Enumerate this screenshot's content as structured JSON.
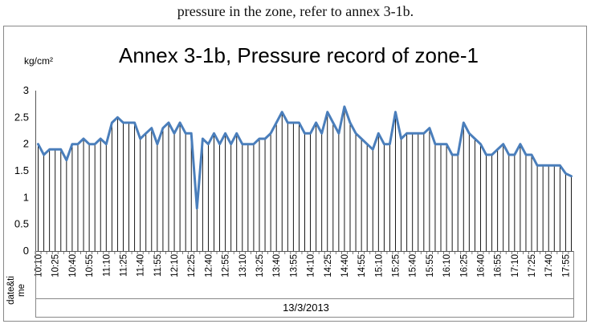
{
  "intro_text": "pressure in the zone, refer to annex 3-1b.",
  "chart_data": {
    "type": "line",
    "title": "Annex 3-1b, Pressure record of zone-1",
    "ylabel": "kg/cm²",
    "xlabel": "13/3/2013",
    "corner_label_line1": "date&ti",
    "corner_label_line2": "me",
    "ylim": [
      0,
      3
    ],
    "yticks": [
      "0",
      "0.5",
      "1",
      "1.5",
      "2",
      "2.5",
      "3"
    ],
    "grid": "vertical drop lines",
    "x": [
      "10:10",
      "10:15",
      "10:20",
      "10:25",
      "10:30",
      "10:35",
      "10:40",
      "10:45",
      "10:50",
      "10:55",
      "11:00",
      "11:05",
      "11:10",
      "11:15",
      "11:20",
      "11:25",
      "11:30",
      "11:35",
      "11:40",
      "11:45",
      "11:50",
      "11:55",
      "12:00",
      "12:05",
      "12:10",
      "12:15",
      "12:20",
      "12:25",
      "12:30",
      "12:35",
      "12:40",
      "12:45",
      "12:50",
      "12:55",
      "13:00",
      "13:05",
      "13:10",
      "13:15",
      "13:20",
      "13:25",
      "13:30",
      "13:35",
      "13:40",
      "13:45",
      "13:50",
      "13:55",
      "14:00",
      "14:05",
      "14:10",
      "14:15",
      "14:20",
      "14:25",
      "14:30",
      "14:35",
      "14:40",
      "14:45",
      "14:50",
      "14:55",
      "15:00",
      "15:05",
      "15:10",
      "15:15",
      "15:20",
      "15:25",
      "15:30",
      "15:35",
      "15:40",
      "15:45",
      "15:50",
      "15:55",
      "16:00",
      "16:05",
      "16:10",
      "16:15",
      "16:20",
      "16:25",
      "16:30",
      "16:35",
      "16:40",
      "16:45",
      "16:50",
      "16:55",
      "17:00",
      "17:05",
      "17:10",
      "17:15",
      "17:20",
      "17:25",
      "17:30",
      "17:35",
      "17:40",
      "17:45",
      "17:50",
      "17:55",
      "18:00"
    ],
    "x_tick_labels": [
      "10:10",
      "10:25",
      "10:40",
      "10:55",
      "11:10",
      "11:25",
      "11:40",
      "11:55",
      "12:10",
      "12:25",
      "12:40",
      "12:55",
      "13:10",
      "13:25",
      "13:40",
      "13:55",
      "14:10",
      "14:25",
      "14:40",
      "14:55",
      "15:10",
      "15:25",
      "15:40",
      "15:55",
      "16:10",
      "16:25",
      "16:40",
      "16:55",
      "17:10",
      "17:25",
      "17:40",
      "17:55"
    ],
    "series": [
      {
        "name": "",
        "color": "#4a7ebb",
        "values": [
          2.0,
          1.8,
          1.9,
          1.9,
          1.9,
          1.7,
          2.0,
          2.0,
          2.1,
          2.0,
          2.0,
          2.1,
          2.0,
          2.4,
          2.5,
          2.4,
          2.4,
          2.4,
          2.1,
          2.2,
          2.3,
          2.0,
          2.3,
          2.4,
          2.2,
          2.4,
          2.2,
          2.2,
          0.8,
          2.1,
          2.0,
          2.2,
          2.0,
          2.2,
          2.0,
          2.2,
          2.0,
          2.0,
          2.0,
          2.1,
          2.1,
          2.2,
          2.4,
          2.6,
          2.4,
          2.4,
          2.4,
          2.2,
          2.2,
          2.4,
          2.2,
          2.6,
          2.4,
          2.2,
          2.7,
          2.4,
          2.2,
          2.1,
          2.0,
          1.9,
          2.2,
          2.0,
          2.0,
          2.6,
          2.1,
          2.2,
          2.2,
          2.2,
          2.2,
          2.3,
          2.0,
          2.0,
          2.0,
          1.8,
          1.8,
          2.4,
          2.2,
          2.1,
          2.0,
          1.8,
          1.8,
          1.9,
          2.0,
          1.8,
          1.8,
          2.0,
          1.8,
          1.8,
          1.6,
          1.6,
          1.6,
          1.6,
          1.6,
          1.45,
          1.4
        ]
      }
    ]
  }
}
